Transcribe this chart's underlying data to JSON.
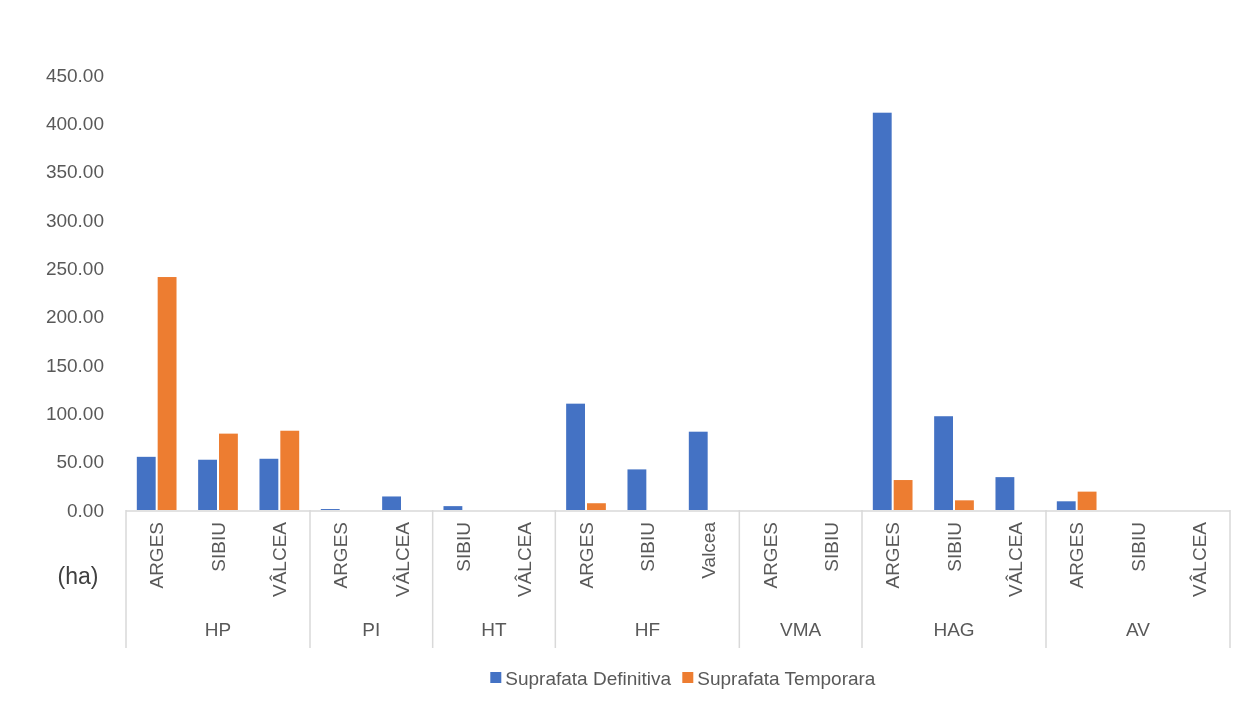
{
  "chart_data": {
    "type": "bar",
    "ylabel": "(ha)",
    "categories": [
      "ARGES",
      "SIBIU",
      "VÂLCEA",
      "ARGES",
      "VÂLCEA",
      "SIBIU",
      "VÂLCEA",
      "ARGES",
      "SIBIU",
      "Valcea",
      "ARGES",
      "SIBIU",
      "ARGES",
      "SIBIU",
      "VÂLCEA",
      "ARGES",
      "SIBIU",
      "VÂLCEA"
    ],
    "series": [
      {
        "name": "Suprafata Definitiva",
        "color": "#4472c4",
        "values": [
          55,
          52,
          53,
          1,
          14,
          4,
          0,
          110,
          42,
          81,
          0,
          0,
          411,
          97,
          34,
          9,
          0,
          0
        ]
      },
      {
        "name": "Suprafata Temporara",
        "color": "#ed7d31",
        "values": [
          241,
          79,
          82,
          0,
          0,
          0,
          0,
          7,
          0,
          0,
          0,
          0,
          31,
          10,
          0,
          19,
          0,
          0
        ]
      }
    ],
    "ylim": [
      0,
      450
    ],
    "yticks": [
      {
        "value": 0,
        "label": "0.00"
      },
      {
        "value": 50,
        "label": "50.00"
      },
      {
        "value": 100,
        "label": "100.00"
      },
      {
        "value": 150,
        "label": "150.00"
      },
      {
        "value": 200,
        "label": "200.00"
      },
      {
        "value": 250,
        "label": "250.00"
      },
      {
        "value": 300,
        "label": "300.00"
      },
      {
        "value": 350,
        "label": "350.00"
      },
      {
        "value": 400,
        "label": "400.00"
      },
      {
        "value": 450,
        "label": "450.00"
      }
    ],
    "annotations": [
      "HP",
      "PI",
      "HT",
      "HF",
      "VMA",
      "HAG",
      "AV"
    ],
    "legend": "bottom"
  }
}
